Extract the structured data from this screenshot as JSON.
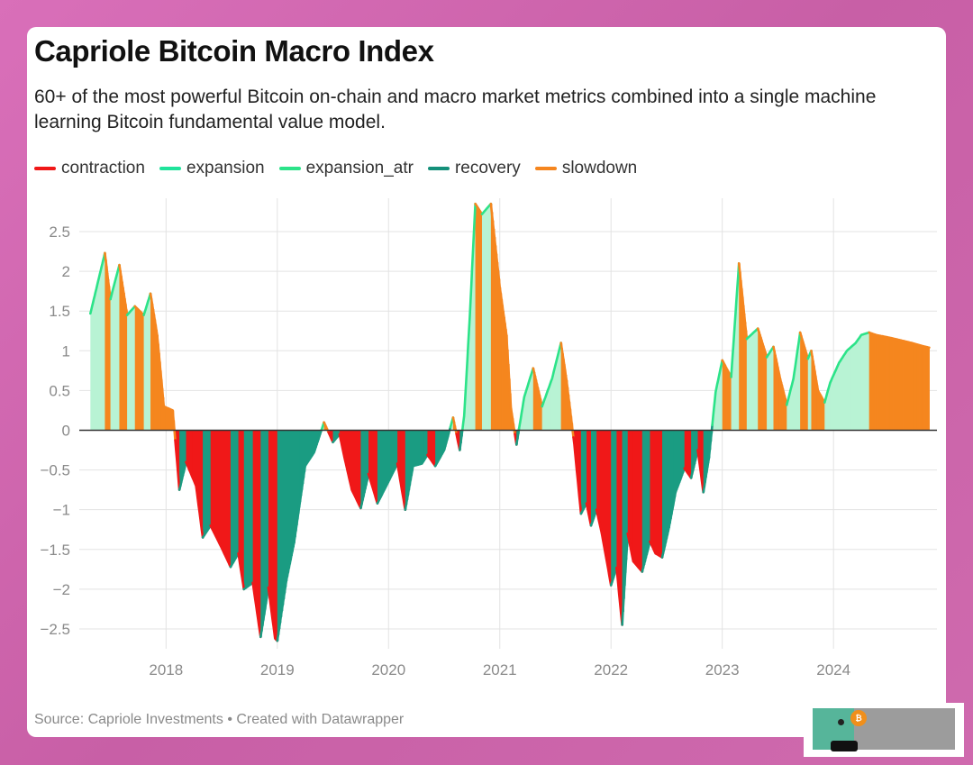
{
  "header": {
    "title": "Capriole Bitcoin Macro Index",
    "subtitle": "60+ of the most powerful Bitcoin on-chain and macro market metrics combined into a single machine learning Bitcoin fundamental value model."
  },
  "legend": [
    {
      "label": "contraction",
      "color": "#f01818"
    },
    {
      "label": "expansion",
      "color": "#1fe39b"
    },
    {
      "label": "expansion_atr",
      "color": "#2ce389"
    },
    {
      "label": "recovery",
      "color": "#14907a"
    },
    {
      "label": "slowdown",
      "color": "#f5861f"
    }
  ],
  "footer": {
    "source": "Source: Capriole Investments • Created with Datawrapper"
  },
  "colors": {
    "contraction": "#f01818",
    "recovery": "#1a9c82",
    "slowdown": "#f5861f",
    "expansion_fill": "#b8f3d4",
    "expansion_line": "#2ce389"
  },
  "chart_data": {
    "type": "area",
    "title": "Capriole Bitcoin Macro Index",
    "x_unit": "year",
    "xlim": [
      2017.22,
      2024.93
    ],
    "ylim": [
      -2.75,
      2.92
    ],
    "x_ticks": [
      2018,
      2019,
      2020,
      2021,
      2022,
      2023,
      2024
    ],
    "x_tick_labels": [
      "2018",
      "2019",
      "2020",
      "2021",
      "2022",
      "2023",
      "2024"
    ],
    "y_ticks": [
      2.5,
      2,
      1.5,
      1,
      0.5,
      0,
      -0.5,
      -1,
      -1.5,
      -2,
      -2.5
    ],
    "y_tick_labels": [
      "2.5",
      "2",
      "1.5",
      "1",
      "0.5",
      "0",
      "−0.5",
      "−1",
      "−1.5",
      "−2",
      "−2.5"
    ],
    "grid": true,
    "legend_position": "top-left",
    "series": [
      {
        "x": [
          2017.32,
          2017.45,
          2017.5,
          2017.58,
          2017.65,
          2017.72,
          2017.8,
          2017.86,
          2017.92,
          2017.98,
          2018.06,
          2018.12,
          2018.18,
          2018.27,
          2018.33,
          2018.4,
          2018.5,
          2018.58,
          2018.65,
          2018.7,
          2018.78,
          2018.85,
          2018.92,
          2018.98,
          2019.0,
          2019.08,
          2019.15,
          2019.25,
          2019.33,
          2019.42,
          2019.5,
          2019.56,
          2019.6,
          2019.67,
          2019.75,
          2019.82,
          2019.9,
          2019.98,
          2020.08,
          2020.15,
          2020.22,
          2020.3,
          2020.35,
          2020.42,
          2020.5,
          2020.58,
          2020.64,
          2020.68,
          2020.73,
          2020.78,
          2020.84,
          2020.92,
          2021.0,
          2021.06,
          2021.1,
          2021.15,
          2021.22,
          2021.3,
          2021.38,
          2021.47,
          2021.55,
          2021.6,
          2021.67,
          2021.73,
          2021.78,
          2021.82,
          2021.87,
          2021.92,
          2022.0,
          2022.05,
          2022.1,
          2022.15,
          2022.2,
          2022.28,
          2022.35,
          2022.4,
          2022.46,
          2022.52,
          2022.58,
          2022.66,
          2022.72,
          2022.78,
          2022.83,
          2022.88,
          2022.94,
          2023.0,
          2023.08,
          2023.15,
          2023.22,
          2023.32,
          2023.4,
          2023.46,
          2023.52,
          2023.58,
          2023.64,
          2023.7,
          2023.77,
          2023.8,
          2023.86,
          2023.92,
          2023.97,
          2024.05,
          2024.12,
          2024.2,
          2024.25,
          2024.32,
          2024.38,
          2024.45,
          2024.52,
          2024.58,
          2024.64,
          2024.7,
          2024.75,
          2024.8,
          2024.86
        ],
        "y": [
          1.47,
          2.23,
          1.65,
          2.08,
          1.45,
          1.56,
          1.45,
          1.72,
          1.2,
          0.3,
          0.25,
          -0.75,
          -0.4,
          -0.7,
          -1.35,
          -1.2,
          -1.48,
          -1.72,
          -1.55,
          -2.0,
          -1.92,
          -2.6,
          -1.98,
          -2.62,
          -2.65,
          -1.9,
          -1.42,
          -0.45,
          -0.28,
          0.1,
          -0.15,
          -0.05,
          -0.32,
          -0.75,
          -0.98,
          -0.55,
          -0.92,
          -0.7,
          -0.42,
          -1.0,
          -0.45,
          -0.42,
          -0.31,
          -0.45,
          -0.25,
          0.16,
          -0.25,
          0.18,
          1.42,
          2.85,
          2.72,
          2.85,
          1.8,
          1.2,
          0.28,
          -0.18,
          0.42,
          0.78,
          0.3,
          0.65,
          1.1,
          0.63,
          -0.18,
          -1.05,
          -0.92,
          -1.2,
          -1.0,
          -1.32,
          -1.95,
          -1.73,
          -2.45,
          -1.3,
          -1.65,
          -1.78,
          -1.4,
          -1.55,
          -1.6,
          -1.23,
          -0.78,
          -0.48,
          -0.6,
          -0.25,
          -0.78,
          -0.35,
          0.48,
          0.88,
          0.67,
          2.1,
          1.15,
          1.28,
          0.92,
          1.05,
          0.65,
          0.32,
          0.65,
          1.23,
          0.9,
          1.0,
          0.5,
          0.35,
          0.6,
          0.85,
          1.0,
          1.1,
          1.2,
          1.23,
          1.2,
          1.18,
          1.16,
          1.14,
          1.12,
          1.1,
          1.08,
          1.06,
          1.04
        ]
      }
    ]
  }
}
